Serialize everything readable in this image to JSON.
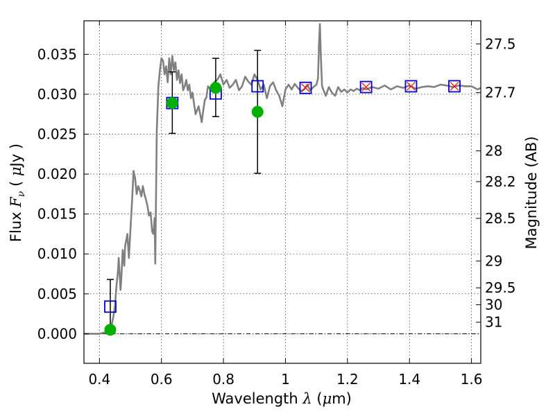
{
  "chart_data": {
    "type": "scatter",
    "xlabel": {
      "prefix": "Wavelength  ",
      "symbol": "λ",
      "unit": " (",
      "mu": "μ",
      "tail": "m)"
    },
    "ylabel": {
      "prefix": "Flux  ",
      "symbol": "F",
      "sub": "ν",
      "unit_open": "  ( ",
      "mu": "μ",
      "unit_close": "Jy )"
    },
    "ylabel_right": "Magnitude (AB)",
    "xlim": [
      0.35,
      1.63
    ],
    "ylim": [
      -0.0037,
      0.0392
    ],
    "grid": true,
    "x_ticks": [
      {
        "value": 0.4,
        "label": "0.4"
      },
      {
        "value": 0.6,
        "label": "0.6"
      },
      {
        "value": 0.8,
        "label": "0.8"
      },
      {
        "value": 1.0,
        "label": "1"
      },
      {
        "value": 1.2,
        "label": "1.2"
      },
      {
        "value": 1.4,
        "label": "1.4"
      },
      {
        "value": 1.6,
        "label": "1.6"
      }
    ],
    "y_ticks": [
      {
        "value": 0.0,
        "label": "0.000"
      },
      {
        "value": 0.005,
        "label": "0.005"
      },
      {
        "value": 0.01,
        "label": "0.010"
      },
      {
        "value": 0.015,
        "label": "0.015"
      },
      {
        "value": 0.02,
        "label": "0.020"
      },
      {
        "value": 0.025,
        "label": "0.025"
      },
      {
        "value": 0.03,
        "label": "0.030"
      },
      {
        "value": 0.035,
        "label": "0.035"
      }
    ],
    "mag_ticks": [
      {
        "mag": 27.5,
        "label": "27.5"
      },
      {
        "mag": 27.7,
        "label": "27.7"
      },
      {
        "mag": 28,
        "label": "28"
      },
      {
        "mag": 28.2,
        "label": "28.2"
      },
      {
        "mag": 28.5,
        "label": "28.5"
      },
      {
        "mag": 29,
        "label": "29"
      },
      {
        "mag": 29.5,
        "label": "29.5"
      },
      {
        "mag": 30,
        "label": "30"
      },
      {
        "mag": 31,
        "label": "31"
      }
    ],
    "colors": {
      "spectrum": "#808080",
      "model_box": "#0000cc",
      "model_cross": "#ff0000",
      "observed": "#00b000",
      "errorbar": "#000000",
      "zero_line": "#000000"
    },
    "spectrum": {
      "x": [
        0.35,
        0.4,
        0.41,
        0.42,
        0.43,
        0.44,
        0.445,
        0.45,
        0.455,
        0.46,
        0.462,
        0.468,
        0.47,
        0.475,
        0.48,
        0.483,
        0.49,
        0.495,
        0.5,
        0.505,
        0.51,
        0.515,
        0.52,
        0.525,
        0.53,
        0.535,
        0.54,
        0.545,
        0.55,
        0.555,
        0.56,
        0.565,
        0.57,
        0.574,
        0.578,
        0.58,
        0.585,
        0.59,
        0.595,
        0.6,
        0.605,
        0.61,
        0.615,
        0.62,
        0.625,
        0.63,
        0.635,
        0.64,
        0.645,
        0.65,
        0.655,
        0.66,
        0.665,
        0.67,
        0.675,
        0.68,
        0.685,
        0.69,
        0.695,
        0.7,
        0.71,
        0.72,
        0.73,
        0.735,
        0.74,
        0.745,
        0.75,
        0.76,
        0.77,
        0.78,
        0.79,
        0.8,
        0.81,
        0.82,
        0.83,
        0.84,
        0.85,
        0.86,
        0.87,
        0.88,
        0.89,
        0.9,
        0.91,
        0.92,
        0.93,
        0.94,
        0.95,
        0.96,
        0.97,
        0.98,
        0.99,
        1.0,
        1.01,
        1.02,
        1.03,
        1.04,
        1.05,
        1.06,
        1.07,
        1.08,
        1.09,
        1.1,
        1.105,
        1.108,
        1.111,
        1.114,
        1.118,
        1.125,
        1.13,
        1.14,
        1.15,
        1.16,
        1.17,
        1.18,
        1.19,
        1.2,
        1.21,
        1.22,
        1.23,
        1.24,
        1.25,
        1.26,
        1.28,
        1.3,
        1.32,
        1.34,
        1.36,
        1.38,
        1.4,
        1.42,
        1.44,
        1.46,
        1.48,
        1.5,
        1.52,
        1.54,
        1.56,
        1.58,
        1.6,
        1.62,
        1.63
      ],
      "y": [
        0.0,
        0.0,
        0.0001,
        0.0002,
        0.0006,
        0.0012,
        0.0022,
        0.0035,
        0.006,
        0.008,
        0.0095,
        0.0055,
        0.0065,
        0.0105,
        0.0085,
        0.011,
        0.0125,
        0.0095,
        0.013,
        0.0165,
        0.0204,
        0.0195,
        0.0175,
        0.0185,
        0.018,
        0.0172,
        0.0185,
        0.0175,
        0.0168,
        0.016,
        0.0148,
        0.0152,
        0.0128,
        0.0125,
        0.0145,
        0.0088,
        0.0255,
        0.031,
        0.033,
        0.0345,
        0.0342,
        0.0325,
        0.0335,
        0.0315,
        0.0345,
        0.0325,
        0.0348,
        0.033,
        0.034,
        0.0318,
        0.033,
        0.0314,
        0.0325,
        0.0305,
        0.031,
        0.0318,
        0.0305,
        0.0312,
        0.0295,
        0.0302,
        0.0275,
        0.0285,
        0.0265,
        0.028,
        0.0293,
        0.0296,
        0.031,
        0.0305,
        0.0315,
        0.0318,
        0.0325,
        0.0312,
        0.0318,
        0.0308,
        0.0312,
        0.0318,
        0.0305,
        0.031,
        0.0322,
        0.0316,
        0.0312,
        0.0325,
        0.0318,
        0.0306,
        0.0312,
        0.0295,
        0.031,
        0.0315,
        0.0305,
        0.0298,
        0.0285,
        0.0306,
        0.0312,
        0.0306,
        0.0313,
        0.0308,
        0.0304,
        0.0306,
        0.0312,
        0.0305,
        0.0309,
        0.0312,
        0.032,
        0.036,
        0.0388,
        0.035,
        0.031,
        0.0303,
        0.0298,
        0.0309,
        0.0302,
        0.0298,
        0.0309,
        0.0303,
        0.0306,
        0.0302,
        0.0306,
        0.0304,
        0.0307,
        0.0305,
        0.0308,
        0.0306,
        0.0309,
        0.0307,
        0.0311,
        0.0306,
        0.031,
        0.0308,
        0.0311,
        0.0307,
        0.0309,
        0.031,
        0.0309,
        0.0312,
        0.0311,
        0.0309,
        0.0311,
        0.031,
        0.031,
        0.0306,
        0.0308
      ]
    },
    "model_squares": {
      "x": [
        0.435,
        0.635,
        0.775,
        0.91,
        1.065,
        1.26,
        1.405,
        1.545
      ],
      "y": [
        0.0034,
        0.0289,
        0.0301,
        0.031,
        0.0308,
        0.0309,
        0.031,
        0.031
      ]
    },
    "model_crosses": {
      "x": [
        1.065,
        1.26,
        1.405,
        1.545
      ],
      "y": [
        0.0308,
        0.0309,
        0.031,
        0.031
      ]
    },
    "observed": {
      "x": [
        0.435,
        0.635,
        0.775,
        0.91
      ],
      "y": [
        0.0005,
        0.0289,
        0.0308,
        0.0278
      ],
      "yerr_low": [
        0.0,
        0.0251,
        0.0272,
        0.0201
      ],
      "yerr_high": [
        0.0068,
        0.0328,
        0.0345,
        0.0355
      ]
    }
  }
}
